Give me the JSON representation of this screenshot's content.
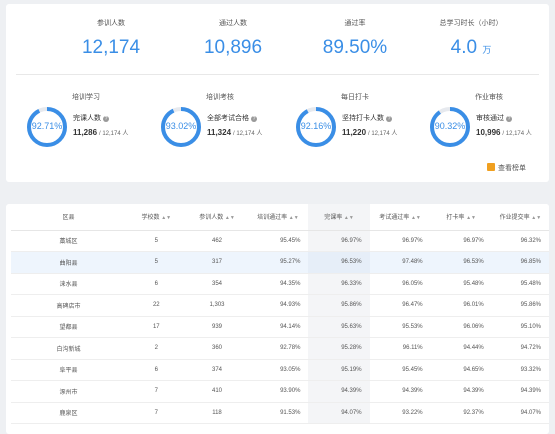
{
  "stats": [
    {
      "label": "参训人数",
      "value": "12,174",
      "unit": ""
    },
    {
      "label": "通过人数",
      "value": "10,896",
      "unit": ""
    },
    {
      "label": "通过率",
      "value": "89.50%",
      "unit": ""
    },
    {
      "label": "总学习时长（小时）",
      "value": "4.0",
      "unit": "万"
    }
  ],
  "rings": [
    {
      "title": "培训学习",
      "percent_label": "92.71%",
      "percent": 92.71,
      "metric_label": "完课人数",
      "metric_value": "11,286",
      "metric_total": "/ 12,174 人"
    },
    {
      "title": "培训考核",
      "percent_label": "93.02%",
      "percent": 93.02,
      "metric_label": "全部考试合格",
      "metric_value": "11,324",
      "metric_total": "/ 12,174 人"
    },
    {
      "title": "每日打卡",
      "percent_label": "92.16%",
      "percent": 92.16,
      "metric_label": "坚持打卡人数",
      "metric_value": "11,220",
      "metric_total": "/ 12,174 人"
    },
    {
      "title": "作业审核",
      "percent_label": "90.32%",
      "percent": 90.32,
      "metric_label": "审核通过",
      "metric_value": "10,996",
      "metric_total": "/ 12,174 人"
    }
  ],
  "ranking_link": "查看榜单",
  "colors": {
    "accent": "#3a8ee6",
    "ring_track": "#e6e9ee",
    "ranking_icon": "#f0a020"
  },
  "table": {
    "headers": [
      "区县",
      "学校数",
      "参训人数",
      "培训通过率",
      "完课率",
      "考试通过率",
      "打卡率",
      "作业提交率"
    ],
    "rows": [
      [
        "藁城区",
        "5",
        "462",
        "95.45%",
        "96.97%",
        "96.97%",
        "96.97%",
        "96.32%"
      ],
      [
        "曲阳县",
        "5",
        "317",
        "95.27%",
        "96.53%",
        "97.48%",
        "96.53%",
        "96.85%"
      ],
      [
        "涞水县",
        "6",
        "354",
        "94.35%",
        "96.33%",
        "96.05%",
        "95.48%",
        "95.48%"
      ],
      [
        "高碑店市",
        "22",
        "1,303",
        "94.93%",
        "95.86%",
        "96.47%",
        "96.01%",
        "95.86%"
      ],
      [
        "望都县",
        "17",
        "939",
        "94.14%",
        "95.63%",
        "95.53%",
        "96.06%",
        "95.10%"
      ],
      [
        "白沟新城",
        "2",
        "360",
        "92.78%",
        "95.28%",
        "96.11%",
        "94.44%",
        "94.72%"
      ],
      [
        "阜平县",
        "6",
        "374",
        "93.05%",
        "95.19%",
        "95.45%",
        "94.65%",
        "93.32%"
      ],
      [
        "涿州市",
        "7",
        "410",
        "93.90%",
        "94.39%",
        "94.39%",
        "94.39%",
        "94.39%"
      ],
      [
        "鹿泉区",
        "7",
        "118",
        "91.53%",
        "94.07%",
        "93.22%",
        "92.37%",
        "94.07%"
      ]
    ]
  }
}
